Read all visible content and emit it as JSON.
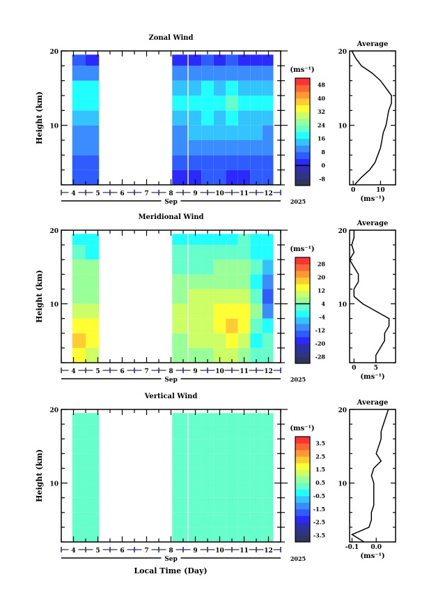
{
  "labels": {
    "average": "Average",
    "height": "Height (km)",
    "unit": "(ms⁻¹)",
    "month": "Sep",
    "year": "2025",
    "xlabel": "Local Time (Day)"
  },
  "chart_data": [
    {
      "type": "heatmap",
      "title": "Zonal Wind",
      "ylabel": "Height (km)",
      "ylim": [
        2,
        20
      ],
      "xlim": [
        3.5,
        12.5
      ],
      "y_ticks": [
        10,
        20
      ],
      "x_ticks": [
        4,
        5,
        6,
        7,
        8,
        9,
        10,
        11,
        12
      ],
      "x_tick_labels": [
        "4",
        "5",
        "6",
        "7",
        "8",
        "9",
        "10",
        "11",
        "12"
      ],
      "colorbar": {
        "range": [
          -12,
          52
        ],
        "step": 4,
        "labels": [
          "48",
          "40",
          "32",
          "24",
          "16",
          "8",
          "0",
          "-8"
        ],
        "label_values": [
          48,
          40,
          32,
          24,
          16,
          8,
          0,
          -8
        ],
        "line_at": 0
      },
      "time_bins": [
        [
          3.95,
          4.5
        ],
        [
          4.5,
          5.05
        ],
        [
          8.05,
          8.68
        ],
        [
          8.72,
          9.25
        ],
        [
          9.25,
          9.75
        ],
        [
          9.75,
          10.25
        ],
        [
          10.25,
          10.75
        ],
        [
          10.75,
          11.25
        ],
        [
          11.25,
          11.75
        ],
        [
          11.75,
          12.2
        ]
      ],
      "height_bins": [
        2,
        4,
        6,
        8,
        10,
        12,
        14,
        16,
        18,
        19.5
      ],
      "values": [
        [
          4,
          6,
          8,
          10,
          14,
          18,
          16,
          10,
          4
        ],
        [
          4,
          7,
          9,
          11,
          15,
          19,
          16,
          10,
          3
        ],
        [
          2,
          4,
          8,
          10,
          14,
          16,
          14,
          8,
          2
        ],
        [
          2,
          6,
          8,
          12,
          14,
          18,
          14,
          8,
          2
        ],
        [
          4,
          6,
          10,
          12,
          16,
          18,
          16,
          10,
          4
        ],
        [
          4,
          6,
          10,
          12,
          14,
          16,
          14,
          8,
          2
        ],
        [
          2,
          6,
          10,
          12,
          16,
          20,
          16,
          10,
          4
        ],
        [
          2,
          6,
          8,
          12,
          14,
          18,
          14,
          8,
          2
        ],
        [
          4,
          6,
          10,
          12,
          14,
          16,
          12,
          8,
          2
        ],
        [
          4,
          6,
          8,
          10,
          14,
          16,
          14,
          8,
          2
        ]
      ],
      "profile": {
        "title": "Average",
        "xlim": [
          -1.3,
          15.5
        ],
        "x_ticks": [
          0,
          10
        ],
        "x_tick_labels": [
          "0",
          "10"
        ],
        "heights": [
          2,
          3,
          4,
          5,
          6,
          7,
          8,
          9,
          10,
          11,
          12,
          13,
          14,
          15,
          16,
          17,
          18,
          19,
          20
        ],
        "values": [
          0.5,
          3,
          6,
          8,
          9,
          10,
          10.5,
          11,
          12,
          12.5,
          13,
          14,
          14,
          12,
          10,
          7,
          3,
          1,
          -0.5
        ]
      }
    },
    {
      "type": "heatmap",
      "title": "Meridional Wind",
      "ylabel": "Height (km)",
      "ylim": [
        2,
        20
      ],
      "xlim": [
        3.5,
        12.5
      ],
      "y_ticks": [
        10,
        20
      ],
      "x_ticks": [
        4,
        5,
        6,
        7,
        8,
        9,
        10,
        11,
        12
      ],
      "x_tick_labels": [
        "4",
        "5",
        "6",
        "7",
        "8",
        "9",
        "10",
        "11",
        "12"
      ],
      "colorbar": {
        "range": [
          -32,
          32
        ],
        "step": 4,
        "labels": [
          "28",
          "20",
          "12",
          "4",
          "-4",
          "-12",
          "-20",
          "-28"
        ],
        "label_values": [
          28,
          20,
          12,
          4,
          -4,
          -12,
          -20,
          -28
        ],
        "line_at": 4
      },
      "time_bins": [
        [
          3.95,
          4.5
        ],
        [
          4.5,
          5.05
        ],
        [
          8.05,
          8.68
        ],
        [
          8.72,
          9.25
        ],
        [
          9.25,
          9.75
        ],
        [
          9.75,
          10.25
        ],
        [
          10.25,
          10.75
        ],
        [
          10.75,
          11.25
        ],
        [
          11.25,
          11.75
        ],
        [
          11.75,
          12.2
        ]
      ],
      "height_bins": [
        2,
        4,
        6,
        8,
        10,
        12,
        14,
        16,
        18,
        19.5
      ],
      "values": [
        [
          14,
          16,
          12,
          8,
          6,
          4,
          6,
          0,
          -2
        ],
        [
          10,
          14,
          12,
          8,
          6,
          4,
          4,
          -2,
          -4
        ],
        [
          4,
          6,
          8,
          8,
          6,
          4,
          2,
          0,
          -4
        ],
        [
          6,
          8,
          8,
          10,
          8,
          6,
          2,
          0,
          -2
        ],
        [
          6,
          8,
          10,
          10,
          8,
          6,
          2,
          0,
          -2
        ],
        [
          8,
          10,
          12,
          12,
          10,
          6,
          4,
          0,
          -2
        ],
        [
          8,
          12,
          16,
          14,
          10,
          6,
          4,
          0,
          -2
        ],
        [
          4,
          8,
          12,
          12,
          10,
          6,
          4,
          2,
          0
        ],
        [
          0,
          -2,
          2,
          4,
          2,
          -4,
          0,
          -2,
          -4
        ],
        [
          2,
          0,
          -4,
          -10,
          -16,
          -12,
          -8,
          -4,
          -2
        ]
      ],
      "profile": {
        "title": "Average",
        "xlim": [
          -1,
          9.5
        ],
        "x_ticks": [
          0,
          5
        ],
        "x_tick_labels": [
          "0",
          "5"
        ],
        "heights": [
          2,
          3,
          4,
          5,
          6,
          7,
          8,
          9,
          10,
          11,
          12,
          13,
          14,
          15,
          16,
          17,
          18,
          19,
          20
        ],
        "values": [
          5,
          5,
          6,
          7,
          7,
          8,
          8,
          5,
          2,
          0,
          0,
          1,
          1,
          0,
          -1,
          0,
          -0.5,
          0,
          0
        ]
      }
    },
    {
      "type": "heatmap",
      "title": "Vertical Wind",
      "ylabel": "Height (km)",
      "ylim": [
        2,
        20
      ],
      "xlim": [
        3.5,
        12.5
      ],
      "y_ticks": [
        10,
        20
      ],
      "x_ticks": [
        4,
        5,
        6,
        7,
        8,
        9,
        10,
        11,
        12
      ],
      "x_tick_labels": [
        "4",
        "5",
        "6",
        "7",
        "8",
        "9",
        "10",
        "11",
        "12"
      ],
      "colorbar": {
        "range": [
          -4,
          4
        ],
        "step": 0.5,
        "labels": [
          "3.5",
          "2.5",
          "1.5",
          "0.5",
          "-0.5",
          "-1.5",
          "-2.5",
          "-3.5"
        ],
        "label_values": [
          3.5,
          2.5,
          1.5,
          0.5,
          -0.5,
          -1.5,
          -2.5,
          -3.5
        ],
        "line_at": null
      },
      "time_bins": [
        [
          3.95,
          4.5
        ],
        [
          4.5,
          5.05
        ],
        [
          8.05,
          8.68
        ],
        [
          8.72,
          9.25
        ],
        [
          9.25,
          9.75
        ],
        [
          9.75,
          10.25
        ],
        [
          10.25,
          10.75
        ],
        [
          10.75,
          11.25
        ],
        [
          11.25,
          11.75
        ],
        [
          11.75,
          12.2
        ]
      ],
      "height_bins": [
        2,
        4,
        6,
        8,
        10,
        12,
        14,
        16,
        18,
        19.5
      ],
      "values": [
        [
          0.1,
          0.2,
          0.1,
          0.2,
          0.2,
          0.3,
          0.2,
          0.3,
          0.2
        ],
        [
          0.1,
          0.1,
          0.2,
          0.2,
          0.2,
          0.2,
          0.3,
          0.3,
          0.2
        ],
        [
          0.1,
          0.2,
          0.2,
          0.1,
          0.2,
          0.2,
          0.2,
          0.3,
          0.3
        ],
        [
          0.2,
          0.2,
          0.1,
          0.2,
          0.2,
          0.2,
          0.3,
          0.3,
          0.3
        ],
        [
          0.1,
          0.2,
          0.2,
          0.2,
          0.2,
          0.2,
          0.2,
          0.3,
          0.2
        ],
        [
          0.1,
          0.1,
          0.2,
          0.2,
          0.2,
          0.2,
          0.3,
          0.3,
          0.3
        ],
        [
          0.2,
          0.2,
          0.2,
          0.1,
          0.2,
          0.2,
          0.2,
          0.3,
          0.2
        ],
        [
          0.1,
          0.2,
          0.2,
          0.2,
          0.2,
          0.2,
          0.2,
          0.3,
          0.3
        ],
        [
          0.1,
          0.2,
          0.1,
          0.2,
          0.2,
          0.2,
          0.3,
          0.3,
          0.2
        ],
        [
          0.2,
          0.2,
          0.2,
          0.2,
          0.2,
          0.2,
          0.2,
          0.3,
          0.3
        ]
      ],
      "profile": {
        "title": "Average",
        "xlim": [
          -0.11,
          0.08
        ],
        "x_ticks": [
          -0.1,
          0.0
        ],
        "x_tick_labels": [
          "-0.1",
          "0.0"
        ],
        "heights": [
          2,
          3,
          4,
          5,
          6,
          7,
          8,
          9,
          10,
          11,
          12,
          13,
          14,
          15,
          16,
          17,
          18,
          19,
          20
        ],
        "values": [
          -0.05,
          -0.1,
          -0.03,
          -0.02,
          -0.02,
          -0.01,
          -0.01,
          -0.01,
          -0.01,
          -0.02,
          -0.01,
          0.02,
          0,
          0.01,
          0.02,
          0.02,
          0.03,
          0.04,
          0.05
        ]
      }
    }
  ],
  "colors": {
    "colormap": [
      "#2e3560",
      "#2e3585",
      "#2c2fb0",
      "#2a2aff",
      "#2f5cff",
      "#3a8cff",
      "#33c3ff",
      "#22ffff",
      "#66ffcc",
      "#99ff99",
      "#ccff66",
      "#ffff33",
      "#ffcc33",
      "#ff9933",
      "#ff6633",
      "#ff3333"
    ],
    "axis": "#000000",
    "marker": "#1a1aa0"
  }
}
